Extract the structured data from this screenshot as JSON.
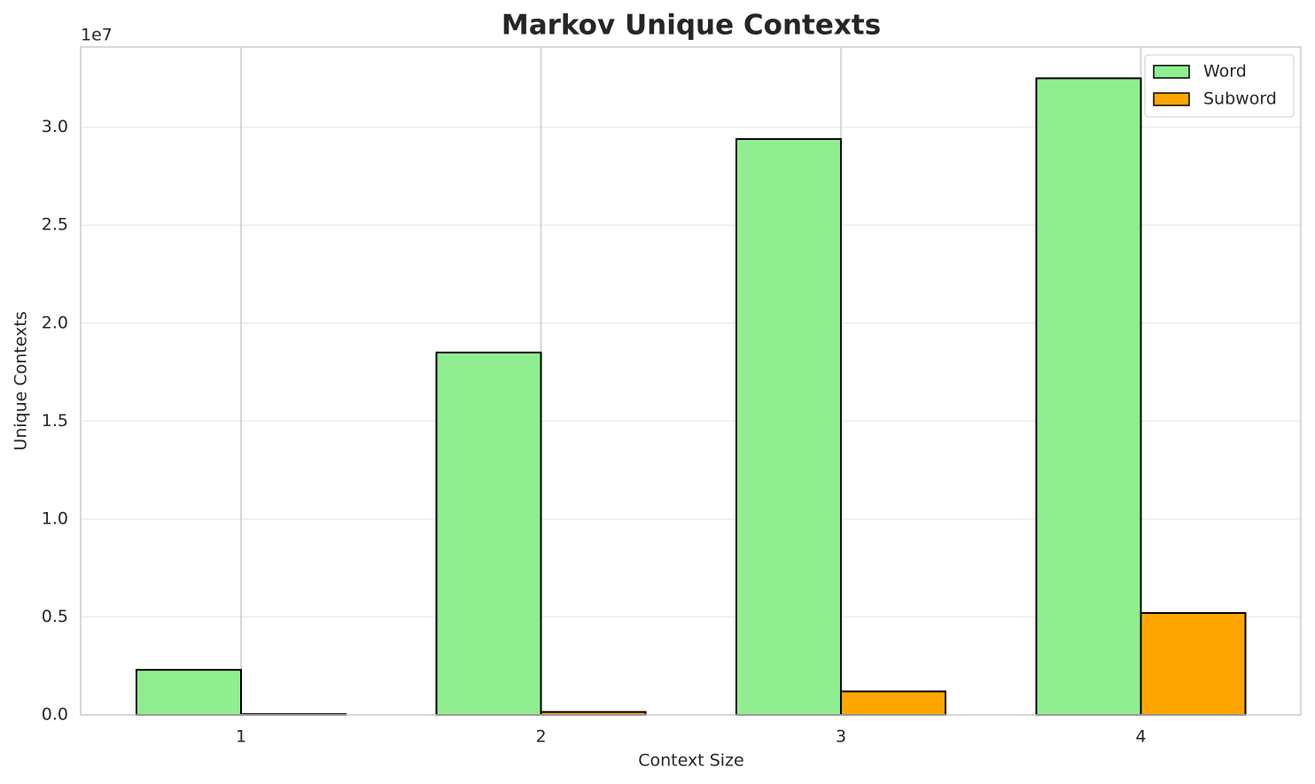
{
  "chart_data": {
    "type": "bar",
    "title": "Markov Unique Contexts",
    "x_label": "Context Size",
    "y_label": "Unique Contexts",
    "y_offset_label": "1e7",
    "categories": [
      "1",
      "2",
      "3",
      "4"
    ],
    "series": [
      {
        "name": "Word",
        "color": "#90ee90",
        "values": [
          0.23,
          1.85,
          2.94,
          3.25
        ]
      },
      {
        "name": "Subword",
        "color": "#ffa500",
        "values": [
          0.004,
          0.015,
          0.12,
          0.52
        ]
      }
    ],
    "ylim": [
      0,
      3.41
    ],
    "yticks": [
      {
        "value": 0,
        "label": "0.0"
      },
      0.5,
      {
        "value": 1,
        "label": "1.0"
      },
      1.5,
      {
        "value": 2,
        "label": "2.0"
      },
      2.5,
      {
        "value": 3,
        "label": "3.0"
      }
    ],
    "grid": true,
    "legend": "upper right"
  }
}
